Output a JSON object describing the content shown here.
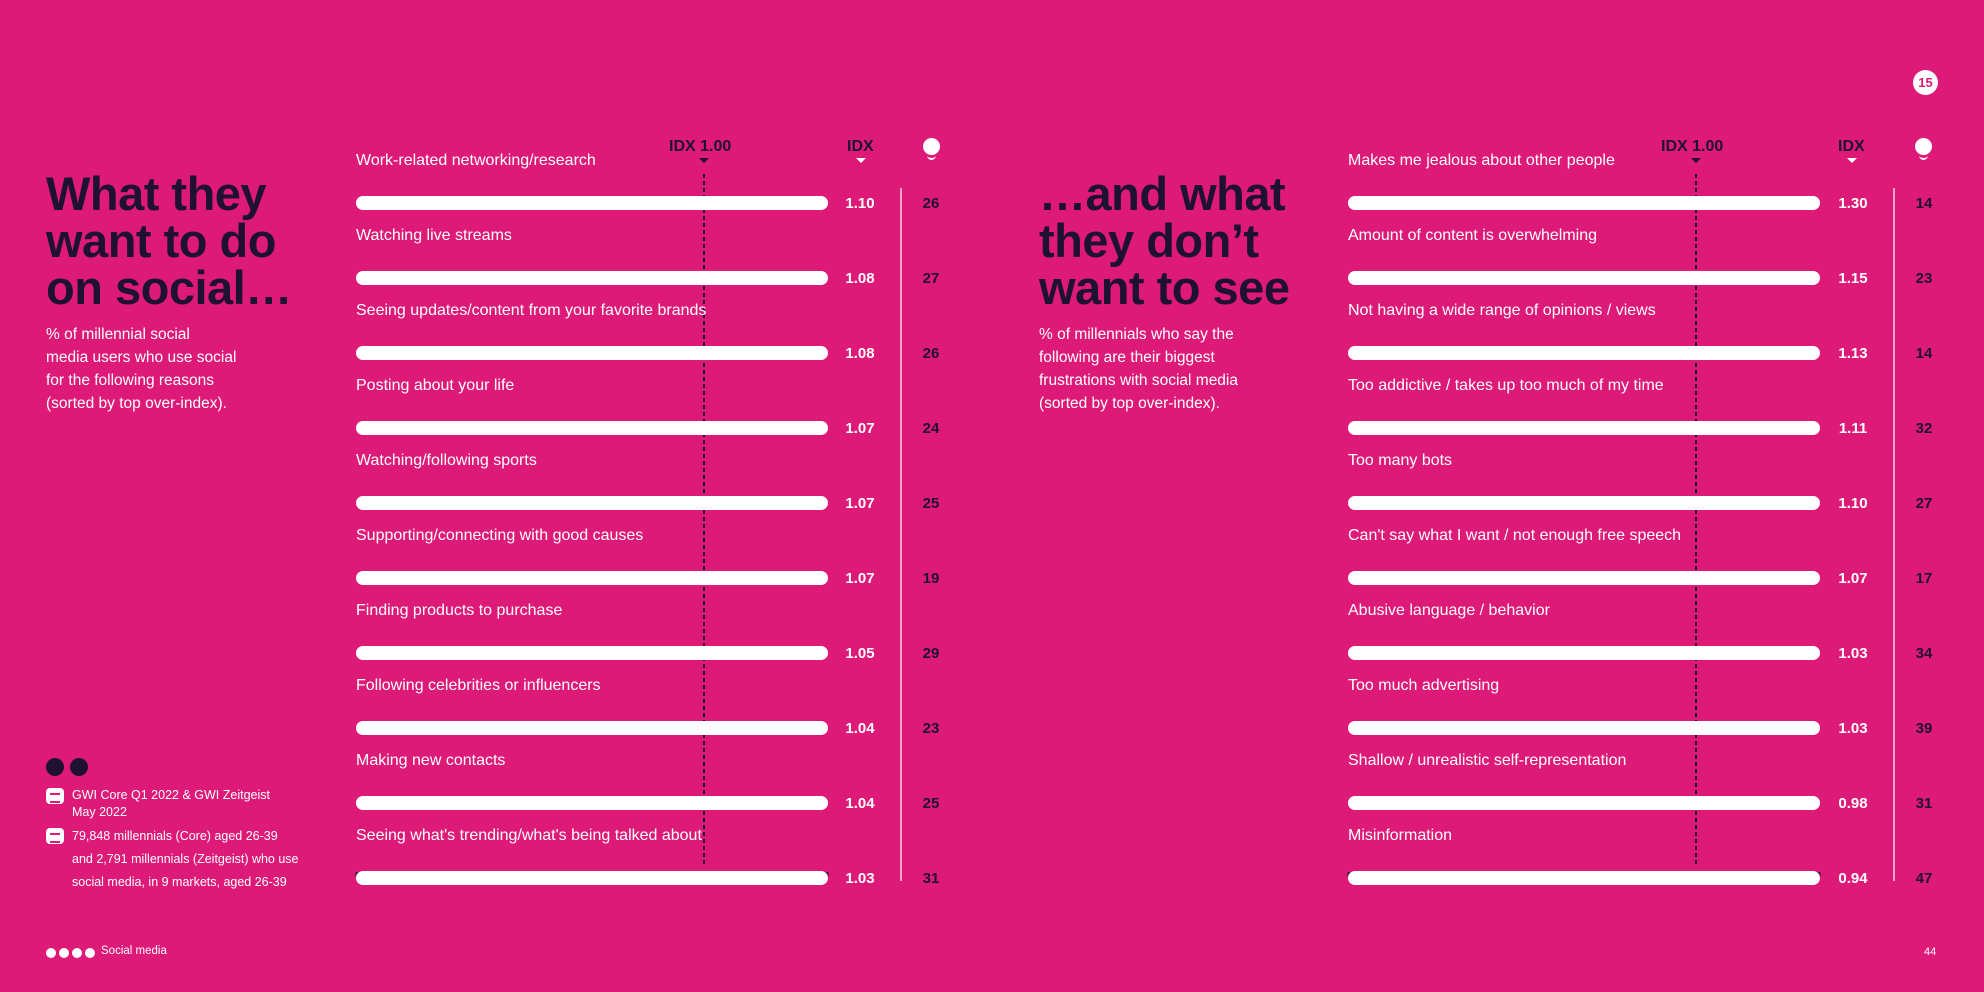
{
  "page_badge": "15",
  "left": {
    "heading": "What they\nwant to do\non social…",
    "subtitle": "% of millennial social\nmedia users who use social\nfor the following reasons\n(sorted by top over-index).",
    "idx_baseline_label": "IDX 1.00",
    "idx_label": "IDX"
  },
  "right": {
    "heading": "…and what\nthey don’t\nwant to see",
    "subtitle": "% of millennials who say the\nfollowing are their biggest\nfrustrations with social media\n(sorted by top over-index).",
    "idx_baseline_label": "IDX 1.00",
    "idx_label": "IDX"
  },
  "source": {
    "line1": "GWI Core Q1 2022 & GWI Zeitgeist",
    "line2": "May 2022",
    "line3": "79,848 millennials (Core) aged 26-39",
    "line4": "and 2,791 millennials (Zeitgeist) who use",
    "line5": "social media, in 9 markets, aged 26-39"
  },
  "footer": {
    "label": "Social media",
    "page_number": "44"
  },
  "colors": {
    "background": "#de1a78",
    "dark": "#1f1133",
    "bar": "#ffffff"
  },
  "icons": [
    "person-icon",
    "info-icon",
    "source-icon",
    "sample-icon"
  ],
  "chart_data": [
    {
      "type": "bar",
      "orientation": "horizontal",
      "baseline": 1.0,
      "categories": [
        "Work-related networking/research",
        "Watching live streams",
        "Seeing updates/content from your favorite brands",
        "Posting about your life",
        "Watching/following sports",
        "Supporting/connecting with good causes",
        "Finding products to purchase",
        "Following celebrities or influencers",
        "Making new contacts",
        "Seeing what's trending/what's being talked about"
      ],
      "series": [
        {
          "name": "IDX",
          "values": [
            1.1,
            1.08,
            1.08,
            1.07,
            1.07,
            1.07,
            1.05,
            1.04,
            1.04,
            1.03
          ],
          "labels": [
            "1.10",
            "1.08",
            "1.08",
            "1.07",
            "1.07",
            "1.07",
            "1.05",
            "1.04",
            "1.04",
            "1.03"
          ]
        },
        {
          "name": "%",
          "values": [
            26,
            27,
            26,
            24,
            25,
            19,
            29,
            23,
            25,
            31
          ],
          "labels": [
            "26",
            "27",
            "26",
            "24",
            "25",
            "19",
            "29",
            "23",
            "25",
            "31"
          ]
        }
      ]
    },
    {
      "type": "bar",
      "orientation": "horizontal",
      "baseline": 1.0,
      "categories": [
        "Makes me jealous about other people",
        "Amount of content is overwhelming",
        "Not having a wide range of opinions / views",
        "Too addictive / takes up too much of my time",
        "Too many bots",
        "Can't say what I want / not enough free speech",
        "Abusive language / behavior",
        "Too much advertising",
        "Shallow / unrealistic self-representation",
        "Misinformation"
      ],
      "series": [
        {
          "name": "IDX",
          "values": [
            1.3,
            1.15,
            1.13,
            1.11,
            1.1,
            1.07,
            1.03,
            1.03,
            0.98,
            0.94
          ],
          "labels": [
            "1.30",
            "1.15",
            "1.13",
            "1.11",
            "1.10",
            "1.07",
            "1.03",
            "1.03",
            "0.98",
            "0.94"
          ]
        },
        {
          "name": "%",
          "values": [
            14,
            23,
            14,
            32,
            27,
            17,
            34,
            39,
            31,
            47
          ],
          "labels": [
            "14",
            "23",
            "14",
            "32",
            "27",
            "17",
            "34",
            "39",
            "31",
            "47"
          ]
        }
      ]
    }
  ]
}
